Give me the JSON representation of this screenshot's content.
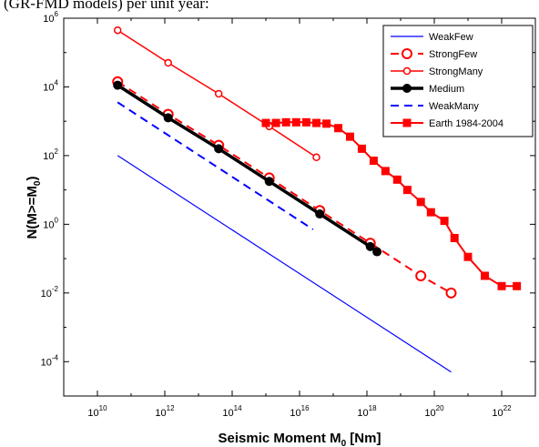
{
  "caption": "(GR-FMD models) per unit year:",
  "chart_data": {
    "type": "line",
    "title": "",
    "xlabel": "Seismic Moment M",
    "xlabel_sub": "0",
    "xlabel_suffix": " [Nm]",
    "ylabel": "N(M>=M",
    "ylabel_sub": "0",
    "ylabel_suffix": ")",
    "xscale": "log",
    "yscale": "log",
    "xlim_exp": [
      9,
      23
    ],
    "ylim_exp": [
      -5,
      6
    ],
    "xticks_exp": [
      10,
      12,
      14,
      16,
      18,
      20,
      22
    ],
    "yticks_exp": [
      6,
      4,
      2,
      0,
      -2,
      -4
    ],
    "tick_base": "10",
    "grid": false,
    "legend_position": "top-right",
    "series": [
      {
        "name": "WeakFew",
        "color": "#0000ff",
        "dash": "solid",
        "marker": "none",
        "x_exp": [
          10.6,
          20.5
        ],
        "y_exp": [
          2.0,
          -4.3
        ]
      },
      {
        "name": "StrongFew",
        "color": "#ff0000",
        "dash": "dashed",
        "marker": "open-circle",
        "x_exp": [
          10.6,
          12.1,
          13.6,
          15.1,
          16.6,
          18.1,
          19.6,
          20.5
        ],
        "y_exp": [
          4.15,
          3.2,
          2.3,
          1.35,
          0.4,
          -0.55,
          -1.5,
          -2.0
        ]
      },
      {
        "name": "StrongMany",
        "color": "#ff0000",
        "dash": "solid",
        "marker": "open-circle-small",
        "x_exp": [
          10.6,
          12.1,
          13.6,
          15.1,
          16.5
        ],
        "y_exp": [
          5.65,
          4.7,
          3.8,
          2.85,
          1.95
        ]
      },
      {
        "name": "Medium",
        "color": "#000000",
        "dash": "solid",
        "marker": "filled-circle",
        "x_exp": [
          10.6,
          12.1,
          13.6,
          15.1,
          16.6,
          18.1,
          18.3
        ],
        "y_exp": [
          4.05,
          3.1,
          2.2,
          1.25,
          0.3,
          -0.65,
          -0.8
        ]
      },
      {
        "name": "WeakMany",
        "color": "#0000ff",
        "dash": "dashed",
        "marker": "none",
        "x_exp": [
          10.6,
          16.4
        ],
        "y_exp": [
          3.55,
          -0.15
        ]
      },
      {
        "name": "Earth 1984-2004",
        "color": "#ff0000",
        "dash": "solid",
        "marker": "filled-square",
        "x_exp": [
          15.0,
          15.3,
          15.6,
          15.9,
          16.2,
          16.5,
          16.8,
          17.15,
          17.5,
          17.85,
          18.2,
          18.55,
          18.9,
          19.2,
          19.6,
          19.9,
          20.3,
          20.6,
          21.0,
          21.5,
          22.0,
          22.45
        ],
        "y_exp": [
          2.95,
          2.95,
          2.97,
          2.97,
          2.97,
          2.95,
          2.93,
          2.8,
          2.55,
          2.2,
          1.85,
          1.55,
          1.3,
          1.0,
          0.65,
          0.35,
          0.1,
          -0.4,
          -0.95,
          -1.5,
          -1.8,
          -1.8
        ]
      }
    ]
  }
}
